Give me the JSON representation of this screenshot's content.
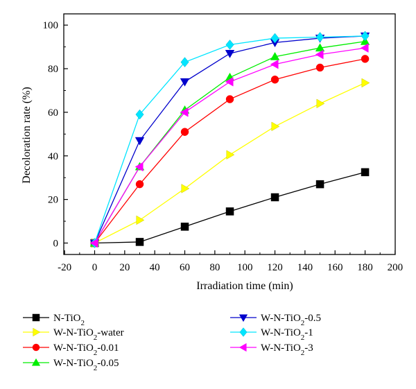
{
  "chart_data": {
    "type": "line",
    "xlabel": "Irradiation time (min)",
    "ylabel": "Decoloration rate (%)",
    "xlim": [
      -20,
      200
    ],
    "ylim": [
      -5,
      100
    ],
    "xticks": [
      -20,
      0,
      20,
      40,
      60,
      80,
      100,
      120,
      140,
      160,
      180,
      200
    ],
    "yticks": [
      0,
      20,
      40,
      60,
      80,
      100
    ],
    "grid": false,
    "legend_position": "bottom",
    "x": [
      0,
      30,
      60,
      90,
      120,
      150,
      180
    ],
    "series": [
      {
        "name": "N-TiO",
        "sub": "2",
        "suffix": "",
        "color": "#000000",
        "marker": "square",
        "values": [
          0,
          0.5,
          7.5,
          14.5,
          21,
          27,
          32.5
        ]
      },
      {
        "name": "W-N-TiO",
        "sub": "2",
        "suffix": "-water",
        "color": "#ffff00",
        "marker": "triangle-right",
        "values": [
          0,
          10.5,
          25,
          40.5,
          53.5,
          64,
          73.5
        ]
      },
      {
        "name": "W-N-TiO",
        "sub": "2",
        "suffix": "-0.01",
        "color": "#ff0000",
        "marker": "circle",
        "values": [
          0,
          27,
          51,
          66,
          75,
          80.5,
          84.5
        ]
      },
      {
        "name": "W-N-TiO",
        "sub": "2",
        "suffix": "-0.05",
        "color": "#00ee00",
        "marker": "triangle-up",
        "values": [
          0,
          35,
          61,
          76,
          85.5,
          89.5,
          92.5
        ]
      },
      {
        "name": "W-N-TiO",
        "sub": "2",
        "suffix": "-0.5",
        "color": "#0000cc",
        "marker": "triangle-down",
        "values": [
          0,
          47,
          74,
          87,
          92,
          94,
          95
        ]
      },
      {
        "name": "W-N-TiO",
        "sub": "2",
        "suffix": "-1",
        "color": "#00e5ff",
        "marker": "diamond",
        "values": [
          0,
          59,
          83,
          91,
          94,
          94.5,
          95
        ]
      },
      {
        "name": "W-N-TiO",
        "sub": "2",
        "suffix": "-3",
        "color": "#ff00ff",
        "marker": "triangle-left",
        "values": [
          0,
          35,
          60,
          74,
          82,
          86.5,
          89.5
        ]
      }
    ]
  }
}
